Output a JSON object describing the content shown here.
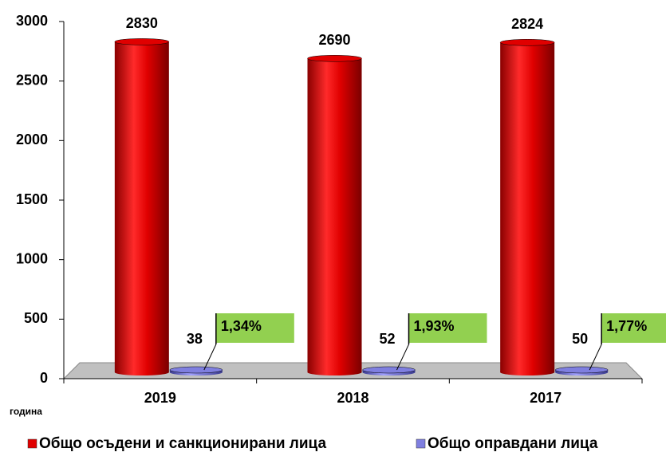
{
  "chart_data": {
    "type": "bar",
    "categories": [
      "2019",
      "2018",
      "2017"
    ],
    "series": [
      {
        "name": "Общо осъдени и санкционирани лица",
        "color": "#e00000",
        "values": [
          2830,
          2690,
          2824
        ]
      },
      {
        "name": "Общо оправдани лица",
        "color": "#7f7fe0",
        "values": [
          38,
          52,
          50
        ]
      }
    ],
    "annotations": [
      "1,34%",
      "1,93%",
      "1,77%"
    ],
    "x_label": "година",
    "ylim": [
      0,
      3000
    ],
    "yticks": [
      0,
      500,
      1000,
      1500,
      2000,
      2500,
      3000
    ],
    "legend": "bottom"
  }
}
